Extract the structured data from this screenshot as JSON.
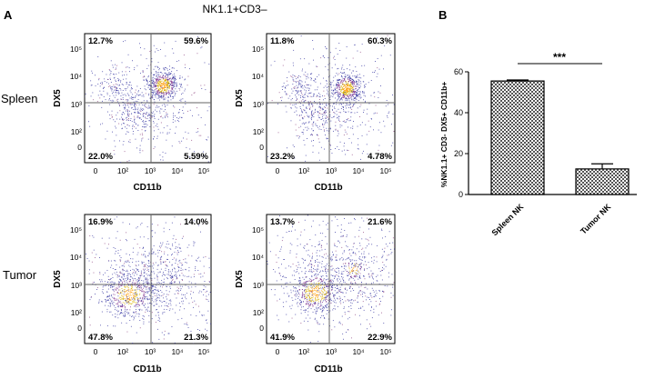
{
  "panel_a_label": "A",
  "panel_b_label": "B",
  "column_header": "NK1.1+CD3–",
  "row_labels": [
    "Spleen",
    "Tumor"
  ],
  "flow_axes": {
    "x_label": "CD11b",
    "y_label": "DX5",
    "x_ticks": [
      "0",
      "10²",
      "10³",
      "10⁴",
      "10⁵"
    ],
    "y_ticks": [
      "0",
      "10²",
      "10³",
      "10⁴",
      "10⁵"
    ]
  },
  "chart_data": [
    {
      "type": "scatter",
      "name": "Spleen replicate 1",
      "xlabel": "CD11b",
      "ylabel": "DX5",
      "quadrants": {
        "ul": "12.7%",
        "ur": "59.6%",
        "ll": "22.0%",
        "lr": "5.59%"
      }
    },
    {
      "type": "scatter",
      "name": "Spleen replicate 2",
      "xlabel": "CD11b",
      "ylabel": "DX5",
      "quadrants": {
        "ul": "11.8%",
        "ur": "60.3%",
        "ll": "23.2%",
        "lr": "4.78%"
      }
    },
    {
      "type": "scatter",
      "name": "Tumor replicate 1",
      "xlabel": "CD11b",
      "ylabel": "DX5",
      "quadrants": {
        "ul": "16.9%",
        "ur": "14.0%",
        "ll": "47.8%",
        "lr": "21.3%"
      }
    },
    {
      "type": "scatter",
      "name": "Tumor replicate 2",
      "xlabel": "CD11b",
      "ylabel": "DX5",
      "quadrants": {
        "ul": "13.7%",
        "ur": "21.6%",
        "ll": "41.9%",
        "lr": "22.9%"
      }
    },
    {
      "type": "bar",
      "categories": [
        "Spleen NK",
        "Tumor NK"
      ],
      "values": [
        55.5,
        12.5
      ],
      "errors": [
        0.5,
        2.5
      ],
      "ylabel": "%NK1.1+ CD3- DX5+ CD11b+",
      "ylim": [
        0,
        60
      ],
      "yticks": [
        "0",
        "20",
        "40",
        "60"
      ],
      "significance": "***",
      "fill": "checkered gray"
    }
  ]
}
